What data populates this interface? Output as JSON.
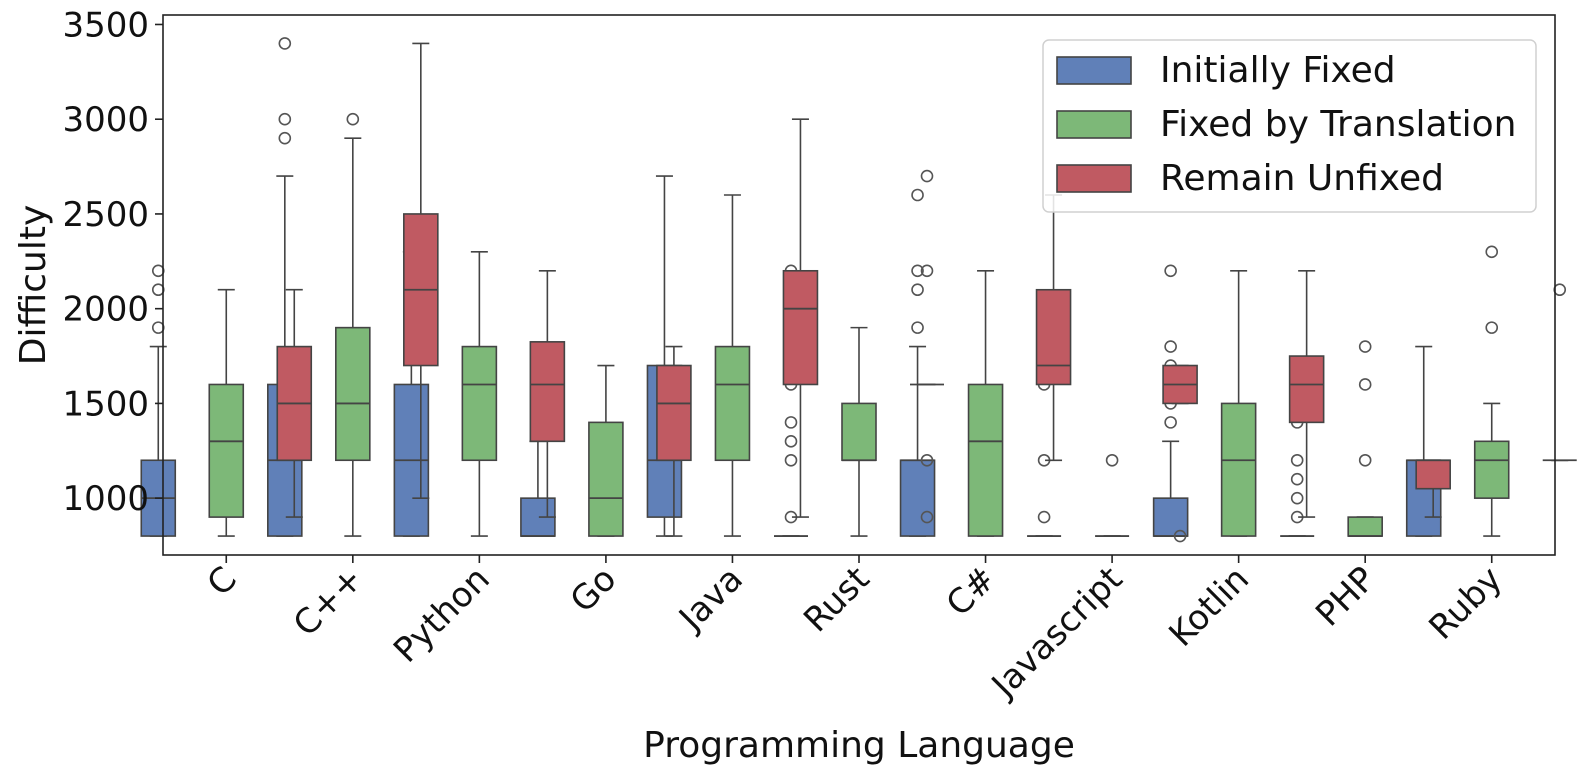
{
  "chart_data": {
    "type": "box",
    "title": "",
    "xlabel": "Programming Language",
    "ylabel": "Difficulty",
    "ylim": [
      700,
      3550
    ],
    "yticks": [
      1000,
      1500,
      2000,
      2500,
      3000,
      3500
    ],
    "ytick_labels": [
      "1000",
      "1500",
      "2000",
      "2500",
      "3000",
      "3500"
    ],
    "grid": false,
    "legend_position": "top-right",
    "categories": [
      "C",
      "C++",
      "Python",
      "Go",
      "Java",
      "Rust",
      "C#",
      "Javascript",
      "Kotlin",
      "PHP",
      "Ruby"
    ],
    "series": [
      {
        "name": "Initially Fixed",
        "color": "#6080b8",
        "boxes": [
          {
            "q1": 800,
            "median": 1000,
            "q3": 1200,
            "whisker_low": 800,
            "whisker_high": 1800,
            "outliers": [
              1900,
              2100,
              2200
            ]
          },
          {
            "q1": 800,
            "median": 1200,
            "q3": 1600,
            "whisker_low": 800,
            "whisker_high": 2700,
            "outliers": [
              2900,
              3000,
              3400
            ]
          },
          {
            "q1": 800,
            "median": 1200,
            "q3": 1600,
            "whisker_low": 800,
            "whisker_high": 2300,
            "outliers": []
          },
          {
            "q1": 800,
            "median": 800,
            "q3": 1000,
            "whisker_low": 800,
            "whisker_high": 1300,
            "outliers": [
              1400,
              1600,
              1700
            ]
          },
          {
            "q1": 900,
            "median": 1200,
            "q3": 1700,
            "whisker_low": 800,
            "whisker_high": 2700,
            "outliers": []
          },
          {
            "q1": 800,
            "median": 800,
            "q3": 800,
            "whisker_low": 800,
            "whisker_high": 800,
            "outliers": [
              900,
              1200,
              1300,
              1400,
              1600,
              1700,
              1800,
              2200
            ]
          },
          {
            "q1": 800,
            "median": 1200,
            "q3": 1200,
            "whisker_low": 800,
            "whisker_high": 1800,
            "outliers": [
              1900,
              2100,
              2200,
              2600
            ]
          },
          {
            "q1": 800,
            "median": 800,
            "q3": 800,
            "whisker_low": 800,
            "whisker_high": 800,
            "outliers": [
              900,
              1200,
              1600
            ]
          },
          {
            "q1": 800,
            "median": 800,
            "q3": 1000,
            "whisker_low": 800,
            "whisker_high": 1300,
            "outliers": [
              1400,
              1500,
              1600,
              1700,
              1800,
              2200
            ]
          },
          {
            "q1": 800,
            "median": 800,
            "q3": 800,
            "whisker_low": 800,
            "whisker_high": 800,
            "outliers": [
              900,
              1000,
              1100,
              1200,
              1400,
              1600
            ]
          },
          {
            "q1": 800,
            "median": 1200,
            "q3": 1200,
            "whisker_low": 800,
            "whisker_high": 1800,
            "outliers": []
          }
        ]
      },
      {
        "name": "Fixed by Translation",
        "color": "#7db878",
        "boxes": [
          {
            "q1": 900,
            "median": 1300,
            "q3": 1600,
            "whisker_low": 800,
            "whisker_high": 2100,
            "outliers": []
          },
          {
            "q1": 1200,
            "median": 1500,
            "q3": 1900,
            "whisker_low": 800,
            "whisker_high": 2900,
            "outliers": [
              3000
            ]
          },
          {
            "q1": 1200,
            "median": 1600,
            "q3": 1800,
            "whisker_low": 800,
            "whisker_high": 2300,
            "outliers": []
          },
          {
            "q1": 800,
            "median": 1000,
            "q3": 1400,
            "whisker_low": 800,
            "whisker_high": 1700,
            "outliers": []
          },
          {
            "q1": 1200,
            "median": 1600,
            "q3": 1800,
            "whisker_low": 800,
            "whisker_high": 2600,
            "outliers": []
          },
          {
            "q1": 1200,
            "median": 1200,
            "q3": 1500,
            "whisker_low": 800,
            "whisker_high": 1900,
            "outliers": []
          },
          {
            "q1": 800,
            "median": 1300,
            "q3": 1600,
            "whisker_low": 800,
            "whisker_high": 2200,
            "outliers": []
          },
          {
            "q1": 800,
            "median": 800,
            "q3": 800,
            "whisker_low": 800,
            "whisker_high": 800,
            "outliers": [
              1200
            ]
          },
          {
            "q1": 800,
            "median": 1200,
            "q3": 1500,
            "whisker_low": 800,
            "whisker_high": 2200,
            "outliers": []
          },
          {
            "q1": 800,
            "median": 800,
            "q3": 900,
            "whisker_low": 800,
            "whisker_high": 900,
            "outliers": [
              1200,
              1600,
              1800
            ]
          },
          {
            "q1": 1000,
            "median": 1200,
            "q3": 1300,
            "whisker_low": 800,
            "whisker_high": 1500,
            "outliers": [
              1900,
              2300
            ]
          }
        ]
      },
      {
        "name": "Remain Unfixed",
        "color": "#c05a62",
        "boxes": [
          {
            "q1": 1200,
            "median": 1500,
            "q3": 1800,
            "whisker_low": 900,
            "whisker_high": 2100,
            "outliers": []
          },
          {
            "q1": 1700,
            "median": 2100,
            "q3": 2500,
            "whisker_low": 1000,
            "whisker_high": 3400,
            "outliers": []
          },
          {
            "q1": 1300,
            "median": 1600,
            "q3": 1825,
            "whisker_low": 900,
            "whisker_high": 2200,
            "outliers": []
          },
          {
            "q1": 1200,
            "median": 1500,
            "q3": 1700,
            "whisker_low": 800,
            "whisker_high": 1800,
            "outliers": []
          },
          {
            "q1": 1600,
            "median": 2000,
            "q3": 2200,
            "whisker_low": 900,
            "whisker_high": 3000,
            "outliers": []
          },
          {
            "q1": 1600,
            "median": 1600,
            "q3": 1600,
            "whisker_low": 1600,
            "whisker_high": 1600,
            "outliers": [
              900,
              1200,
              2200,
              2700
            ]
          },
          {
            "q1": 1600,
            "median": 1700,
            "q3": 2100,
            "whisker_low": 1200,
            "whisker_high": 2600,
            "outliers": []
          },
          {
            "q1": 1500,
            "median": 1600,
            "q3": 1700,
            "whisker_low": 1500,
            "whisker_high": 1700,
            "outliers": [
              800
            ]
          },
          {
            "q1": 1400,
            "median": 1600,
            "q3": 1750,
            "whisker_low": 900,
            "whisker_high": 2200,
            "outliers": []
          },
          {
            "q1": 1050,
            "median": 1200,
            "q3": 1200,
            "whisker_low": 900,
            "whisker_high": 1200,
            "outliers": []
          },
          {
            "q1": 1200,
            "median": 1200,
            "q3": 1200,
            "whisker_low": 1200,
            "whisker_high": 1200,
            "outliers": [
              2100
            ]
          }
        ]
      }
    ]
  }
}
